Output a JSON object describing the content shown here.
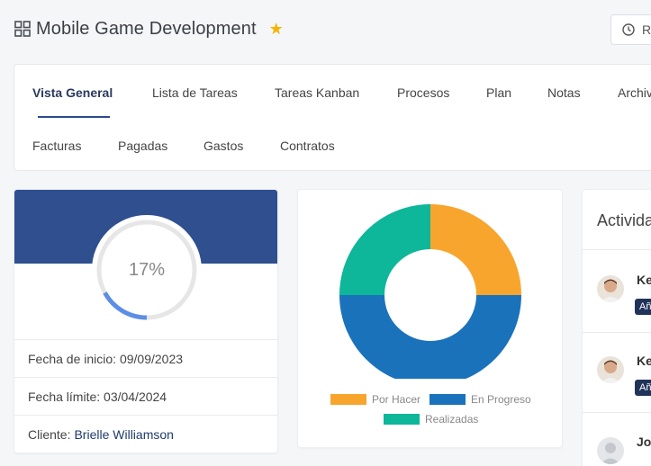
{
  "header": {
    "title": "Mobile Game Development",
    "timer_label": "R"
  },
  "tabs": [
    {
      "label": "Vista General",
      "active": true
    },
    {
      "label": "Lista de Tareas"
    },
    {
      "label": "Tareas Kanban"
    },
    {
      "label": "Procesos"
    },
    {
      "label": "Plan"
    },
    {
      "label": "Notas"
    },
    {
      "label": "Archiv"
    },
    {
      "label": "Facturas"
    },
    {
      "label": "Pagadas"
    },
    {
      "label": "Gastos"
    },
    {
      "label": "Contratos"
    }
  ],
  "progress": {
    "percent": 17,
    "percent_label": "17%",
    "start_date": "Fecha de inicio: 09/09/2023",
    "deadline": "Fecha límite: 03/04/2024",
    "client_label": "Cliente:",
    "client_name": "Brielle Williamson"
  },
  "colors": {
    "primary": "#2f4f8f",
    "por_hacer": "#f8a52e",
    "en_progreso": "#1a72bb",
    "realizadas": "#0eb69a"
  },
  "chart_data": {
    "type": "pie",
    "variant": "donut",
    "categories": [
      "Por Hacer",
      "En Progreso",
      "Realizadas"
    ],
    "values": [
      25,
      50,
      25
    ],
    "legend": "bottom"
  },
  "activity": {
    "title": "Actividad",
    "items": [
      {
        "name": "Ke",
        "badge": "Añ"
      },
      {
        "name": "Ke",
        "badge": "Añ"
      },
      {
        "name": "Joe",
        "badge": ""
      }
    ]
  }
}
